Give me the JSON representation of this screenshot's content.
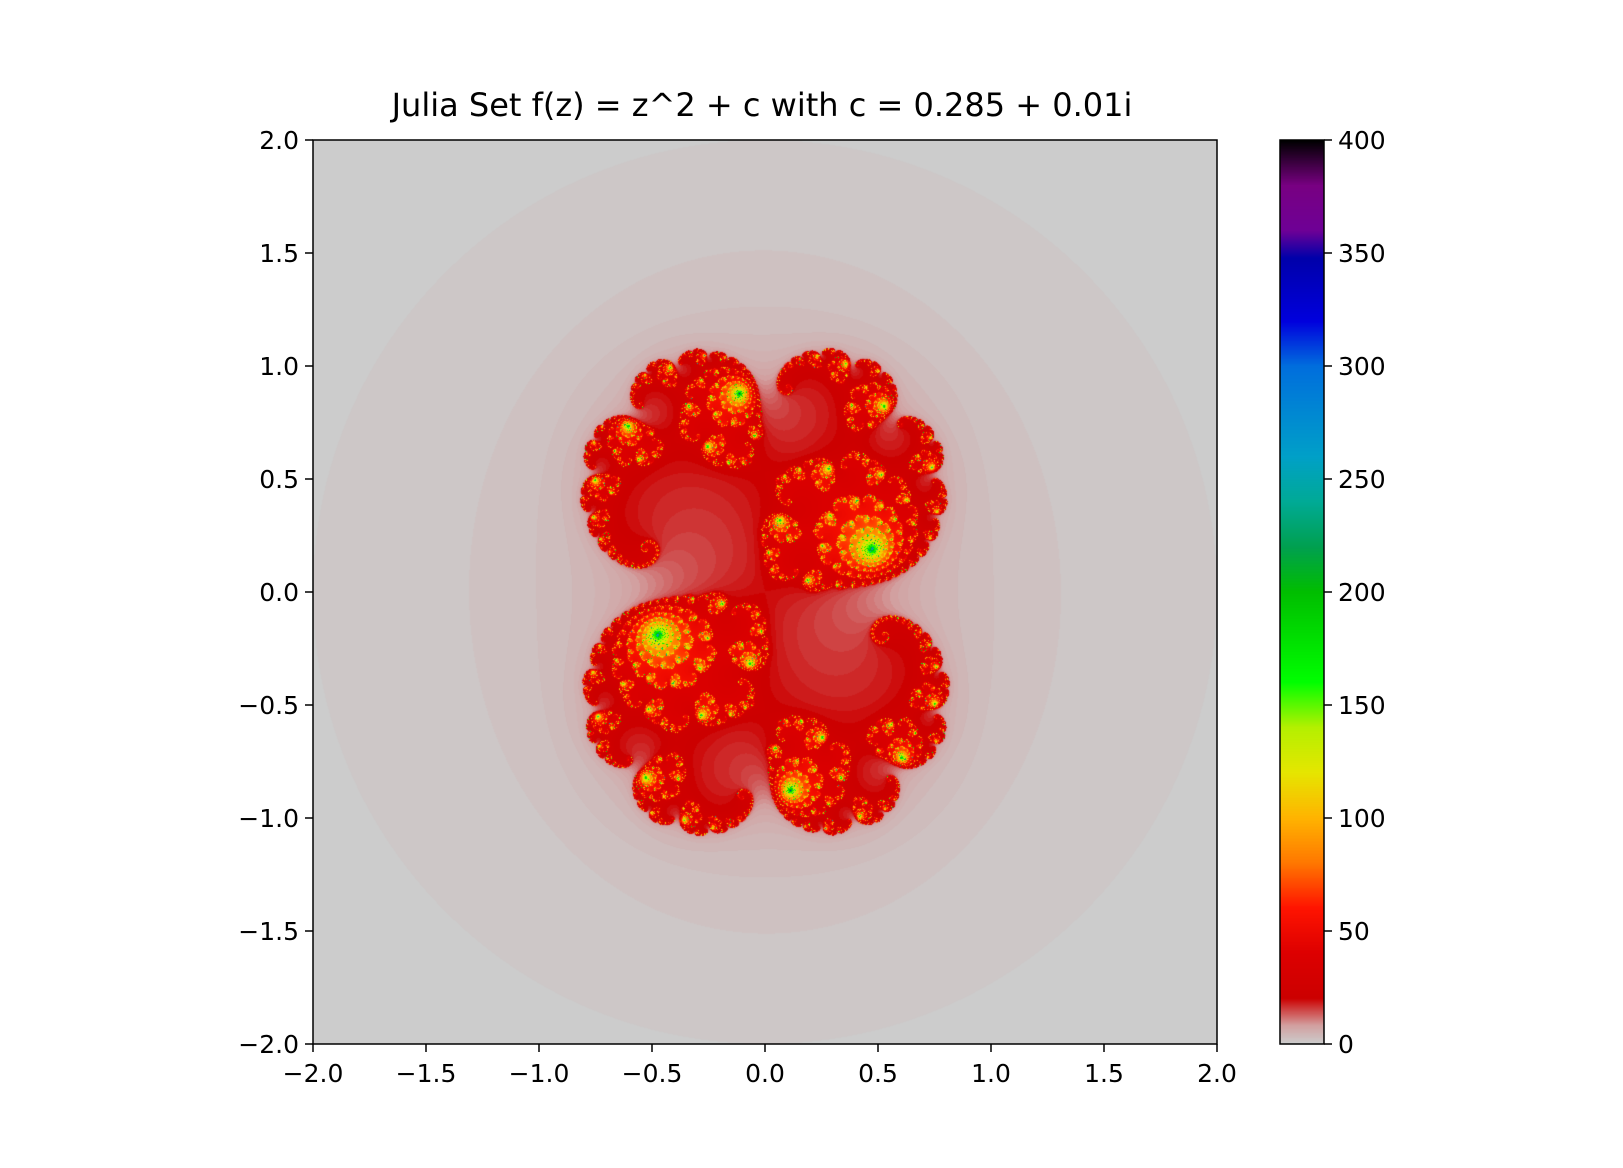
{
  "chart_data": {
    "type": "heatmap",
    "title": "Julia Set f(z) = z^2 + c with c = 0.285 + 0.01i",
    "c": {
      "re": 0.285,
      "im": 0.01
    },
    "xlim": [
      -2.0,
      2.0
    ],
    "ylim": [
      -2.0,
      2.0
    ],
    "xticks": [
      -2.0,
      -1.5,
      -1.0,
      -0.5,
      0.0,
      0.5,
      1.0,
      1.5,
      2.0
    ],
    "xtick_labels": [
      "−2.0",
      "−1.5",
      "−1.0",
      "−0.5",
      "0.0",
      "0.5",
      "1.0",
      "1.5",
      "2.0"
    ],
    "yticks": [
      -2.0,
      -1.5,
      -1.0,
      -0.5,
      0.0,
      0.5,
      1.0,
      1.5,
      2.0
    ],
    "ytick_labels": [
      "−2.0",
      "−1.5",
      "−1.0",
      "−0.5",
      "0.0",
      "0.5",
      "1.0",
      "1.5",
      "2.0"
    ],
    "max_iterations": 400,
    "colormap": "nipy_spectral_r",
    "colorbar": {
      "range": [
        0,
        400
      ],
      "ticks": [
        0,
        50,
        100,
        150,
        200,
        250,
        300,
        350,
        400
      ],
      "tick_labels": [
        "0",
        "50",
        "100",
        "150",
        "200",
        "250",
        "300",
        "350",
        "400"
      ]
    },
    "grid": false,
    "background_color": "#cccccc"
  }
}
